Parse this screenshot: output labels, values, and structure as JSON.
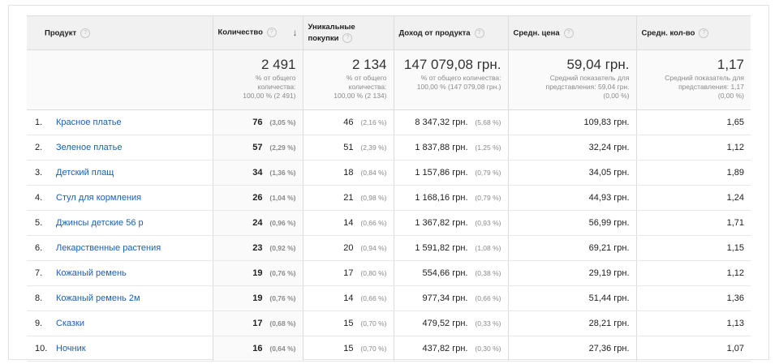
{
  "headers": {
    "product": "Продукт",
    "quantity": "Количество",
    "unique_purchases": [
      "Уникальные",
      "покупки"
    ],
    "revenue": "Доход от продукта",
    "avg_price": "Средн. цена",
    "avg_qty": "Средн. кол-во"
  },
  "help_icon_glyph": "?",
  "sort_arrow_glyph": "↓",
  "summary": {
    "quantity": {
      "value": "2 491",
      "note": [
        "% от общего",
        "количества:",
        "100,00 % (2 491)"
      ]
    },
    "unique_purchases": {
      "value": "2 134",
      "note": [
        "% от общего",
        "количества:",
        "100,00 % (2 134)"
      ]
    },
    "revenue": {
      "value": "147 079,08 грн.",
      "note": [
        "% от общего количества:",
        "100,00 % (147 079,08 грн.)"
      ]
    },
    "avg_price": {
      "value": "59,04 грн.",
      "note": [
        "Средний показатель для",
        "представления: 59,04 грн.",
        "(0,00 %)"
      ]
    },
    "avg_qty": {
      "value": "1,17",
      "note": [
        "Средний показатель для",
        "представления: 1,17",
        "(0,00 %)"
      ]
    }
  },
  "rows": [
    {
      "idx": "1.",
      "name": "Красное платье",
      "qty": "76",
      "qty_pct": "(3,05 %)",
      "uniq": "46",
      "uniq_pct": "(2,16 %)",
      "rev": "8 347,32 грн.",
      "rev_pct": "(5,68 %)",
      "price": "109,83 грн.",
      "avgq": "1,65"
    },
    {
      "idx": "2.",
      "name": "Зеленое платье",
      "qty": "57",
      "qty_pct": "(2,29 %)",
      "uniq": "51",
      "uniq_pct": "(2,39 %)",
      "rev": "1 837,88 грн.",
      "rev_pct": "(1,25 %)",
      "price": "32,24 грн.",
      "avgq": "1,12"
    },
    {
      "idx": "3.",
      "name": "Детский плащ",
      "qty": "34",
      "qty_pct": "(1,36 %)",
      "uniq": "18",
      "uniq_pct": "(0,84 %)",
      "rev": "1 157,86 грн.",
      "rev_pct": "(0,79 %)",
      "price": "34,05 грн.",
      "avgq": "1,89"
    },
    {
      "idx": "4.",
      "name": "Стул для кормления",
      "qty": "26",
      "qty_pct": "(1,04 %)",
      "uniq": "21",
      "uniq_pct": "(0,98 %)",
      "rev": "1 168,16 грн.",
      "rev_pct": "(0,79 %)",
      "price": "44,93 грн.",
      "avgq": "1,24"
    },
    {
      "idx": "5.",
      "name": "Джинсы детские 56 р",
      "qty": "24",
      "qty_pct": "(0,96 %)",
      "uniq": "14",
      "uniq_pct": "(0,66 %)",
      "rev": "1 367,82 грн.",
      "rev_pct": "(0,93 %)",
      "price": "56,99 грн.",
      "avgq": "1,71"
    },
    {
      "idx": "6.",
      "name": "Лекарственные растения",
      "qty": "23",
      "qty_pct": "(0,92 %)",
      "uniq": "20",
      "uniq_pct": "(0,94 %)",
      "rev": "1 591,82 грн.",
      "rev_pct": "(1,08 %)",
      "price": "69,21 грн.",
      "avgq": "1,15"
    },
    {
      "idx": "7.",
      "name": "Кожаный ремень",
      "qty": "19",
      "qty_pct": "(0,76 %)",
      "uniq": "17",
      "uniq_pct": "(0,80 %)",
      "rev": "554,66 грн.",
      "rev_pct": "(0,38 %)",
      "price": "29,19 грн.",
      "avgq": "1,12"
    },
    {
      "idx": "8.",
      "name": "Кожаный ремень 2м",
      "qty": "19",
      "qty_pct": "(0,76 %)",
      "uniq": "14",
      "uniq_pct": "(0,66 %)",
      "rev": "977,34 грн.",
      "rev_pct": "(0,66 %)",
      "price": "51,44 грн.",
      "avgq": "1,36"
    },
    {
      "idx": "9.",
      "name": "Сказки",
      "qty": "17",
      "qty_pct": "(0,68 %)",
      "uniq": "15",
      "uniq_pct": "(0,70 %)",
      "rev": "479,52 грн.",
      "rev_pct": "(0,33 %)",
      "price": "28,21 грн.",
      "avgq": "1,13"
    },
    {
      "idx": "10.",
      "name": "Ночник",
      "qty": "16",
      "qty_pct": "(0,64 %)",
      "uniq": "15",
      "uniq_pct": "(0,70 %)",
      "rev": "437,82 грн.",
      "rev_pct": "(0,30 %)",
      "price": "27,36 грн.",
      "avgq": "1,07"
    }
  ]
}
